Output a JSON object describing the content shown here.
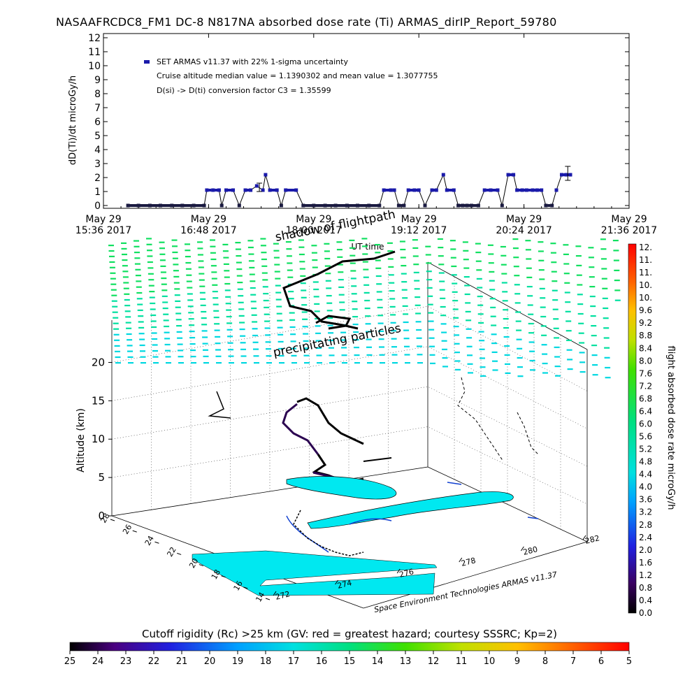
{
  "title": "NASAAFRCDC8_FM1 DC-8   N817NA absorbed dose rate (Ti) ARMAS_dirIP_Report_59780",
  "chart_data": [
    {
      "type": "scatter",
      "title": "",
      "ylabel": "dD(Ti)/dt microGy/h",
      "xlabel": "UT time",
      "ylim": [
        0,
        12
      ],
      "yticks": [
        "0",
        "1",
        "2",
        "3",
        "4",
        "5",
        "6",
        "7",
        "8",
        "9",
        "10",
        "11",
        "12"
      ],
      "xticks": [
        {
          "top": "May 29",
          "bottom": "15:36 2017"
        },
        {
          "top": "May 29",
          "bottom": "16:48 2017"
        },
        {
          "top": "May 29",
          "bottom": "18:00 2017"
        },
        {
          "top": "May 29",
          "bottom": "19:12 2017"
        },
        {
          "top": "May 29",
          "bottom": "20:24 2017"
        },
        {
          "top": "May 29",
          "bottom": "21:36 2017"
        }
      ],
      "legend_placement": "top-left",
      "legend": "SET ARMAS v11.37 with 22% 1-sigma uncertainty",
      "annotations": [
        "Cruise altitude median value = 1.1390302 and mean value = 1.3077755",
        "D(si) -> D(ti) conversion factor C3 = 1.35599"
      ],
      "series": [
        {
          "name": "SET ARMAS v11.37",
          "color": "#1a1aaa",
          "x_hours": [
            15.88,
            16.0,
            16.13,
            16.25,
            16.38,
            16.5,
            16.63,
            16.75,
            16.78,
            16.85,
            16.92,
            16.95,
            17.0,
            17.08,
            17.15,
            17.22,
            17.28,
            17.35,
            17.42,
            17.45,
            17.5,
            17.58,
            17.63,
            17.68,
            17.8,
            17.88,
            18.0,
            18.13,
            18.25,
            18.38,
            18.5,
            18.63,
            18.75,
            18.8,
            18.88,
            18.92,
            18.97,
            19.03,
            19.08,
            19.15,
            19.2,
            19.27,
            19.35,
            19.4,
            19.48,
            19.52,
            19.6,
            19.65,
            19.7,
            19.75,
            19.8,
            19.88,
            19.95,
            20.02,
            20.1,
            20.15,
            20.22,
            20.28,
            20.32,
            20.38,
            20.43,
            20.5,
            20.55,
            20.6,
            20.65,
            20.72,
            20.77,
            20.83,
            20.88,
            20.93
          ],
          "y": [
            0,
            0,
            0,
            0,
            0,
            0,
            0,
            0,
            1.1,
            1.1,
            1.1,
            0,
            1.1,
            1.1,
            0,
            1.1,
            1.1,
            1.4,
            1.1,
            2.2,
            1.1,
            1.1,
            0,
            1.1,
            1.1,
            0,
            0,
            0,
            0,
            0,
            0,
            0,
            0,
            1.1,
            1.1,
            1.1,
            0,
            0,
            1.1,
            1.1,
            1.1,
            0,
            1.1,
            1.1,
            2.2,
            1.1,
            1.1,
            0,
            0,
            0,
            0,
            0,
            1.1,
            1.1,
            1.1,
            0,
            2.2,
            2.2,
            1.1,
            1.1,
            1.1,
            1.1,
            1.1,
            1.1,
            0,
            0,
            1.1,
            2.2,
            2.2,
            2.2
          ],
          "error_bars": [
            {
              "x_hours": 17.38,
              "y": 1.3,
              "low": 1.0,
              "high": 1.6
            },
            {
              "x_hours": 20.9,
              "y": 2.3,
              "low": 1.8,
              "high": 2.8
            }
          ]
        }
      ]
    },
    {
      "type": "scatter",
      "title": "",
      "axis_labels": [
        "Altitude (km)"
      ],
      "zlim": [
        0,
        25
      ],
      "zticks": [
        "0",
        "5",
        "10",
        "15",
        "20"
      ],
      "lat_ticks": [
        "14",
        "16",
        "18",
        "20",
        "22",
        "24",
        "26",
        "28"
      ],
      "lon_ticks": [
        "272",
        "274",
        "276",
        "278",
        "280",
        "282"
      ],
      "annotations": [
        "shadow of flightpath",
        "precipitating particles",
        "Space Environment Technologies ARMAS v11.37"
      ],
      "shadow_label": "shadow of flightpath",
      "particles_label": "precipitating particles",
      "credit": "Space Environment Technologies ARMAS v11.37",
      "colorbar": {
        "title": "flight absorbed dose rate microGy/h",
        "range": [
          0,
          12
        ],
        "labels": [
          "12.",
          "11.",
          "11.",
          "10.",
          "10.",
          "9.6",
          "9.2",
          "8.8",
          "8.4",
          "8.0",
          "7.6",
          "7.2",
          "6.8",
          "6.4",
          "6.0",
          "5.6",
          "5.2",
          "4.8",
          "4.4",
          "4.0",
          "3.6",
          "3.2",
          "2.8",
          "2.4",
          "2.0",
          "1.6",
          "1.2",
          "0.8",
          "0.4",
          "0.0"
        ]
      }
    },
    {
      "type": "heatmap",
      "title": "Cutoff rigidity (Rc) >25 km (GV: red = greatest hazard; courtesy SSSRC; Kp=2)",
      "scale_labels": [
        "25",
        "24",
        "23",
        "22",
        "21",
        "20",
        "19",
        "18",
        "17",
        "16",
        "15",
        "14",
        "13",
        "12",
        "11",
        "10",
        "9",
        "8",
        "7",
        "6",
        "5"
      ]
    }
  ]
}
